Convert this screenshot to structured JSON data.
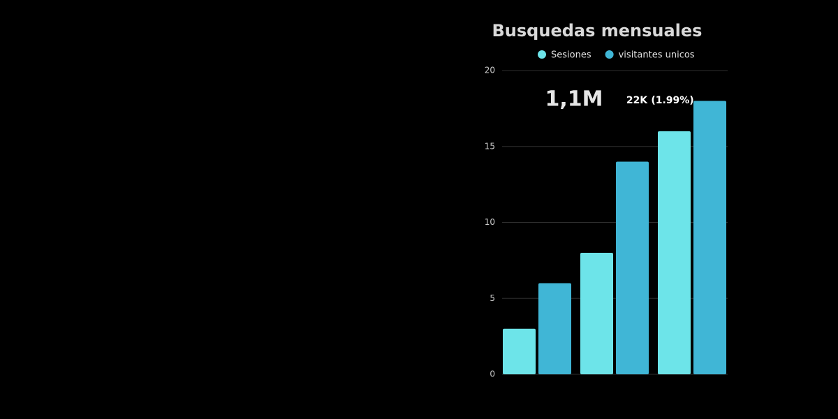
{
  "chart_data": {
    "type": "bar",
    "title": "Busquedas mensuales",
    "categories": [
      null,
      null,
      null
    ],
    "series": [
      {
        "name": "Sesiones",
        "color": "#6de4e9",
        "values": [
          3,
          8,
          16
        ]
      },
      {
        "name": "visitantes unicos",
        "color": "#40b6d6",
        "values": [
          6,
          14,
          18
        ]
      }
    ],
    "ylim": [
      0,
      20
    ],
    "yticks": [
      0,
      5,
      10,
      15,
      20
    ],
    "grid": true,
    "annotations": [
      "1,1M",
      "22K",
      "(1.99%)"
    ]
  }
}
